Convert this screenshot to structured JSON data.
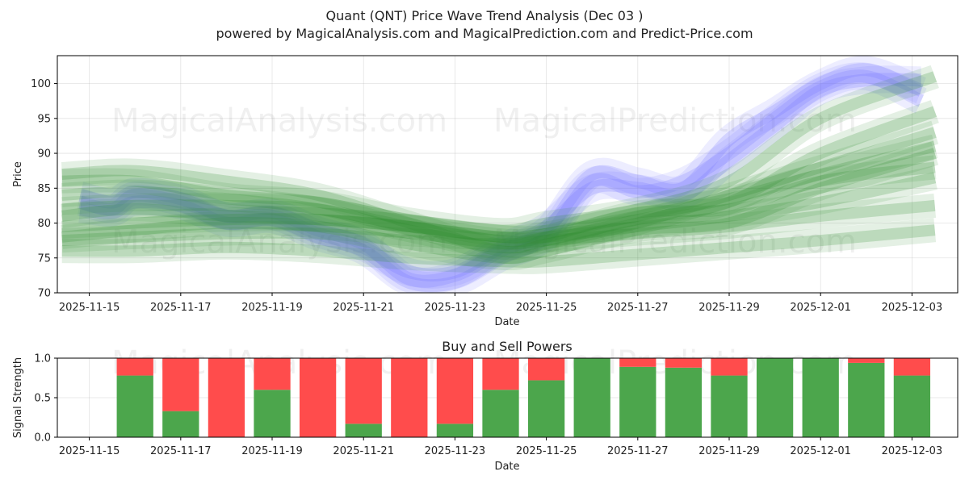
{
  "chart_data": [
    {
      "type": "line",
      "title": "Quant (QNT) Price Wave Trend Analysis (Dec 03 )",
      "subtitle": "powered by MagicalAnalysis.com and MagicalPrediction.com and Predict-Price.com",
      "xlabel": "Date",
      "ylabel": "Price",
      "xlim": [
        -0.7,
        19.0
      ],
      "ylim": [
        70,
        104
      ],
      "yticks": [
        70,
        75,
        80,
        85,
        90,
        95,
        100
      ],
      "xticks": [
        {
          "pos": 0,
          "label": "2025-11-15"
        },
        {
          "pos": 2,
          "label": "2025-11-17"
        },
        {
          "pos": 4,
          "label": "2025-11-19"
        },
        {
          "pos": 6,
          "label": "2025-11-21"
        },
        {
          "pos": 8,
          "label": "2025-11-23"
        },
        {
          "pos": 10,
          "label": "2025-11-25"
        },
        {
          "pos": 12,
          "label": "2025-11-27"
        },
        {
          "pos": 14,
          "label": "2025-11-29"
        },
        {
          "pos": 16,
          "label": "2025-12-01"
        },
        {
          "pos": 18,
          "label": "2025-12-03"
        }
      ],
      "grid": true,
      "colors": {
        "actual": "#6e6eff",
        "forecast": "#2e8b2e"
      },
      "series": [
        {
          "name": "actual-1",
          "kind": "actual",
          "x": [
            -0.2,
            0.5,
            1,
            2,
            3,
            4,
            5,
            6,
            7,
            8,
            9,
            10,
            11,
            12,
            13,
            14,
            15,
            16,
            17,
            18.2
          ],
          "values": [
            84,
            83,
            84.5,
            83.5,
            81,
            81.5,
            79,
            77,
            72,
            72.5,
            76,
            79,
            87,
            86,
            85,
            92,
            96,
            100,
            102,
            99
          ]
        },
        {
          "name": "actual-2",
          "kind": "actual",
          "x": [
            -0.2,
            0.5,
            1,
            2,
            3,
            4,
            5,
            6,
            7,
            8,
            9,
            10,
            11,
            12,
            13,
            14,
            15,
            16,
            17,
            18.2
          ],
          "values": [
            82,
            81.5,
            83,
            82.5,
            80,
            80.5,
            78,
            76,
            71.5,
            71.5,
            75,
            78,
            86,
            84.5,
            86,
            90,
            95,
            99.5,
            101,
            97.5
          ]
        },
        {
          "name": "actual-3",
          "kind": "actual",
          "x": [
            -0.2,
            0.5,
            1,
            2,
            3,
            4,
            5,
            6,
            7,
            8,
            9,
            10,
            11,
            12,
            13,
            14,
            15,
            16,
            17,
            18.2
          ],
          "values": [
            83,
            82,
            84,
            83,
            81,
            81,
            78.5,
            76.5,
            73,
            73,
            76.5,
            79.5,
            85,
            85,
            84,
            89,
            94,
            99,
            100.5,
            100.5
          ]
        },
        {
          "name": "forecast-1",
          "kind": "forecast",
          "x": [
            -0.6,
            1,
            3,
            5,
            7,
            9,
            10,
            12,
            14,
            16,
            18.5
          ],
          "values": [
            87,
            87.5,
            86,
            84,
            80,
            76,
            77,
            80,
            84,
            88,
            93
          ]
        },
        {
          "name": "forecast-2",
          "kind": "forecast",
          "x": [
            -0.6,
            1,
            3,
            5,
            7,
            9,
            10,
            12,
            14,
            16,
            18.5
          ],
          "values": [
            84,
            84.5,
            83.5,
            82,
            79,
            76.5,
            77.5,
            80.5,
            83,
            90,
            96
          ]
        },
        {
          "name": "forecast-3",
          "kind": "forecast",
          "x": [
            -0.6,
            1,
            3,
            5,
            7,
            9,
            10,
            12,
            14,
            16,
            18.5
          ],
          "values": [
            81,
            82,
            81,
            80.5,
            79.5,
            78,
            78.5,
            81,
            83.5,
            87,
            91
          ]
        },
        {
          "name": "forecast-4",
          "kind": "forecast",
          "x": [
            -0.6,
            1,
            3,
            5,
            7,
            9,
            10,
            12,
            14,
            16,
            18.5
          ],
          "values": [
            82,
            82.5,
            82.5,
            82,
            79.5,
            77.5,
            78,
            81.5,
            82,
            86,
            88
          ]
        },
        {
          "name": "forecast-5",
          "kind": "forecast",
          "x": [
            -0.6,
            1,
            3,
            5,
            7,
            9,
            10,
            12,
            14,
            16,
            18.5
          ],
          "values": [
            79.5,
            80,
            80.5,
            80.5,
            79.5,
            78,
            78,
            79.5,
            81,
            83,
            86.5
          ]
        },
        {
          "name": "forecast-6",
          "kind": "forecast",
          "x": [
            -0.6,
            1,
            3,
            5,
            7,
            9,
            10,
            12,
            14,
            16,
            18.5
          ],
          "values": [
            77.5,
            78,
            78.5,
            78.5,
            77.5,
            77,
            77.5,
            78.5,
            79.5,
            81,
            82.5
          ]
        },
        {
          "name": "forecast-7",
          "kind": "forecast",
          "x": [
            -0.6,
            1,
            3,
            5,
            7,
            9,
            10,
            12,
            14,
            16,
            18.5
          ],
          "values": [
            76,
            76,
            76.5,
            76,
            75,
            74.5,
            74.5,
            75.5,
            76.5,
            77.5,
            79
          ]
        },
        {
          "name": "forecast-8",
          "kind": "forecast",
          "x": [
            -0.6,
            1,
            3,
            5,
            7,
            9,
            10,
            12,
            14,
            16,
            18.5
          ],
          "values": [
            78,
            79,
            80,
            79.5,
            77,
            75,
            76,
            79,
            80,
            85,
            90
          ]
        },
        {
          "name": "forecast-9",
          "kind": "forecast",
          "x": [
            -0.6,
            1,
            3,
            5,
            7,
            9,
            10,
            12,
            14,
            16,
            18.5
          ],
          "values": [
            86,
            86,
            84,
            83,
            80.5,
            79,
            80,
            82,
            86,
            95,
            101
          ]
        }
      ]
    },
    {
      "type": "bar",
      "stacked": true,
      "title": "Buy and Sell Powers",
      "xlabel": "Date",
      "ylabel": "Signal Strength",
      "xlim": [
        -0.7,
        19.0
      ],
      "ylim": [
        0,
        1
      ],
      "yticks": [
        {
          "value": 0,
          "label": "0.0"
        },
        {
          "value": 0.5,
          "label": "0.5"
        },
        {
          "value": 1,
          "label": "1.0"
        }
      ],
      "xticks": [
        {
          "pos": 0,
          "label": "2025-11-15"
        },
        {
          "pos": 2,
          "label": "2025-11-17"
        },
        {
          "pos": 4,
          "label": "2025-11-19"
        },
        {
          "pos": 6,
          "label": "2025-11-21"
        },
        {
          "pos": 8,
          "label": "2025-11-23"
        },
        {
          "pos": 10,
          "label": "2025-11-25"
        },
        {
          "pos": 12,
          "label": "2025-11-27"
        },
        {
          "pos": 14,
          "label": "2025-11-29"
        },
        {
          "pos": 16,
          "label": "2025-12-01"
        },
        {
          "pos": 18,
          "label": "2025-12-03"
        }
      ],
      "grid": true,
      "colors": {
        "buy": "#4ca64c",
        "sell": "#ff4c4c"
      },
      "categories": [
        "2025-11-16",
        "2025-11-17",
        "2025-11-18",
        "2025-11-19",
        "2025-11-20",
        "2025-11-21",
        "2025-11-22",
        "2025-11-23",
        "2025-11-24",
        "2025-11-25",
        "2025-11-26",
        "2025-11-27",
        "2025-11-28",
        "2025-11-29",
        "2025-11-30",
        "2025-12-01",
        "2025-12-02",
        "2025-12-03"
      ],
      "positions": [
        1,
        2,
        3,
        4,
        5,
        6,
        7,
        8,
        9,
        10,
        11,
        12,
        13,
        14,
        15,
        16,
        17,
        18
      ],
      "series": [
        {
          "name": "Buy",
          "values": [
            0.78,
            0.33,
            0.0,
            0.6,
            0.0,
            0.17,
            0.0,
            0.17,
            0.6,
            0.72,
            1.0,
            0.89,
            0.88,
            0.78,
            1.0,
            1.0,
            0.94,
            0.78
          ]
        },
        {
          "name": "Sell",
          "values": [
            0.22,
            0.67,
            1.0,
            0.4,
            1.0,
            0.83,
            1.0,
            0.83,
            0.4,
            0.28,
            0.0,
            0.11,
            0.12,
            0.22,
            0.0,
            0.0,
            0.06,
            0.22
          ]
        }
      ]
    }
  ],
  "watermarks": [
    "MagicalAnalysis.com",
    "MagicalPrediction.com"
  ]
}
